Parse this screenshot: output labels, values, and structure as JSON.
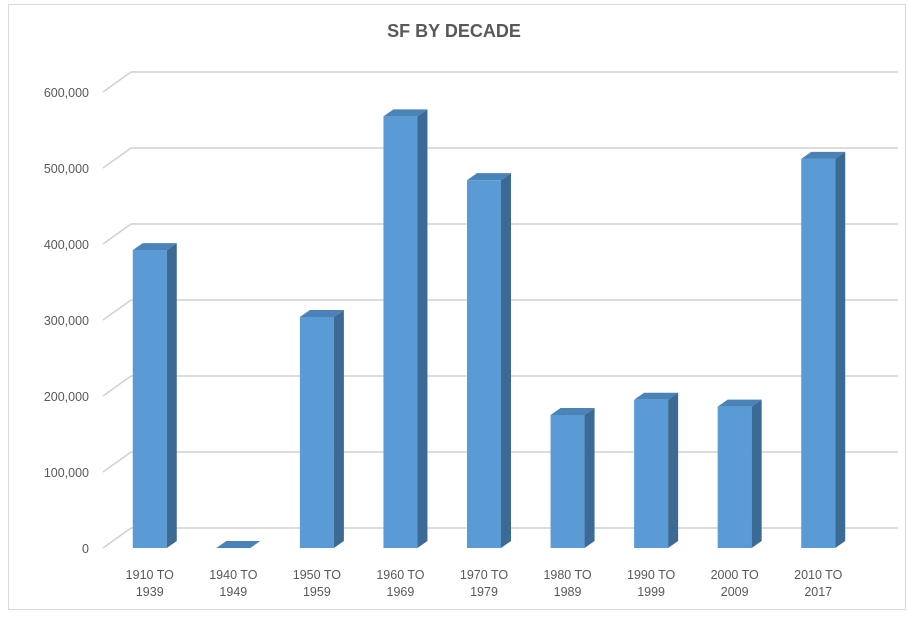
{
  "chart_data": {
    "type": "bar",
    "title": "SF BY DECADE",
    "xlabel": "",
    "ylabel": "",
    "categories": [
      "1910 TO 1939",
      "1940 TO 1949",
      "1950 TO 1959",
      "1960 TO 1969",
      "1970 TO 1979",
      "1980 TO 1989",
      "1990 TO 1999",
      "2000 TO 2009",
      "2010 TO 2017"
    ],
    "category_lines": [
      [
        "1910 TO",
        "1939"
      ],
      [
        "1940 TO",
        "1949"
      ],
      [
        "1950 TO",
        "1959"
      ],
      [
        "1960 TO",
        "1969"
      ],
      [
        "1970 TO",
        "1979"
      ],
      [
        "1980 TO",
        "1989"
      ],
      [
        "1990 TO",
        "1999"
      ],
      [
        "2000 TO",
        "2009"
      ],
      [
        "2010 TO",
        "2017"
      ]
    ],
    "values": [
      392000,
      0,
      304000,
      568000,
      484000,
      175000,
      195000,
      186000,
      512000
    ],
    "ylim": [
      0,
      600000
    ],
    "yticks": [
      0,
      100000,
      200000,
      300000,
      400000,
      500000,
      600000
    ],
    "ytick_labels": [
      "0",
      "100,000",
      "200,000",
      "300,000",
      "400,000",
      "500,000",
      "600,000"
    ],
    "grid": true,
    "legend": "none",
    "style": "3d-column",
    "colors": {
      "bar_front": "#5b9bd5",
      "bar_side": "#3b6a94",
      "bar_top": "#4a83b8",
      "grid": "#d0d0d0",
      "text": "#595959"
    }
  }
}
